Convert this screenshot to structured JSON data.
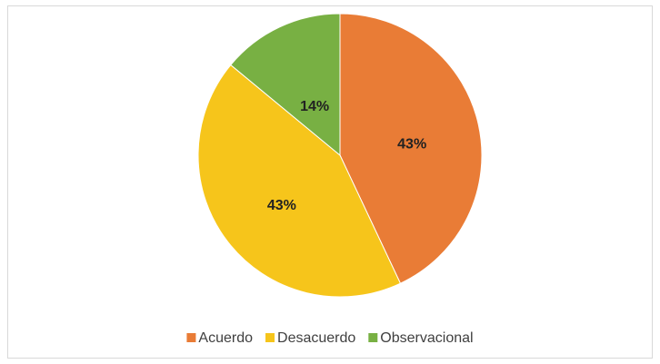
{
  "chart_data": {
    "type": "pie",
    "categories": [
      "Acuerdo",
      "Desacuerdo",
      "Observacional"
    ],
    "values": [
      43,
      43,
      14
    ],
    "value_labels": [
      "43%",
      "43%",
      "14%"
    ],
    "colors": [
      "#e97c36",
      "#f6c51b",
      "#78b043"
    ],
    "legend": "bottom"
  }
}
